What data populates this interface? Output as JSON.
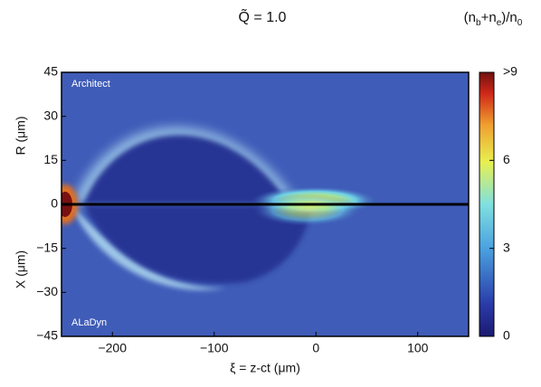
{
  "chart_data": {
    "type": "heatmap",
    "title": "Q̃ = 1.0",
    "x_label": "ξ = z-ct (μm)",
    "y_label_upper": "R (μm)",
    "y_label_lower": "X (μm)",
    "annotations": [
      "Architect",
      "ALaDyn"
    ],
    "xlim": [
      -250,
      150
    ],
    "xticks": [
      {
        "value": -200,
        "label": "−200"
      },
      {
        "value": -100,
        "label": "−100"
      },
      0,
      100
    ],
    "ylim": [
      -45,
      45
    ],
    "yticks": [
      {
        "value": -45,
        "label": "−45"
      },
      {
        "value": -30,
        "label": "−30"
      },
      {
        "value": -15,
        "label": "−15"
      },
      0,
      15,
      30,
      45
    ],
    "colorbar": {
      "label": "(nb+ne)/n0",
      "lim": [
        0,
        9
      ],
      "ticks": [
        0,
        3,
        6,
        {
          "value": 9,
          "label": ">9"
        }
      ]
    }
  }
}
